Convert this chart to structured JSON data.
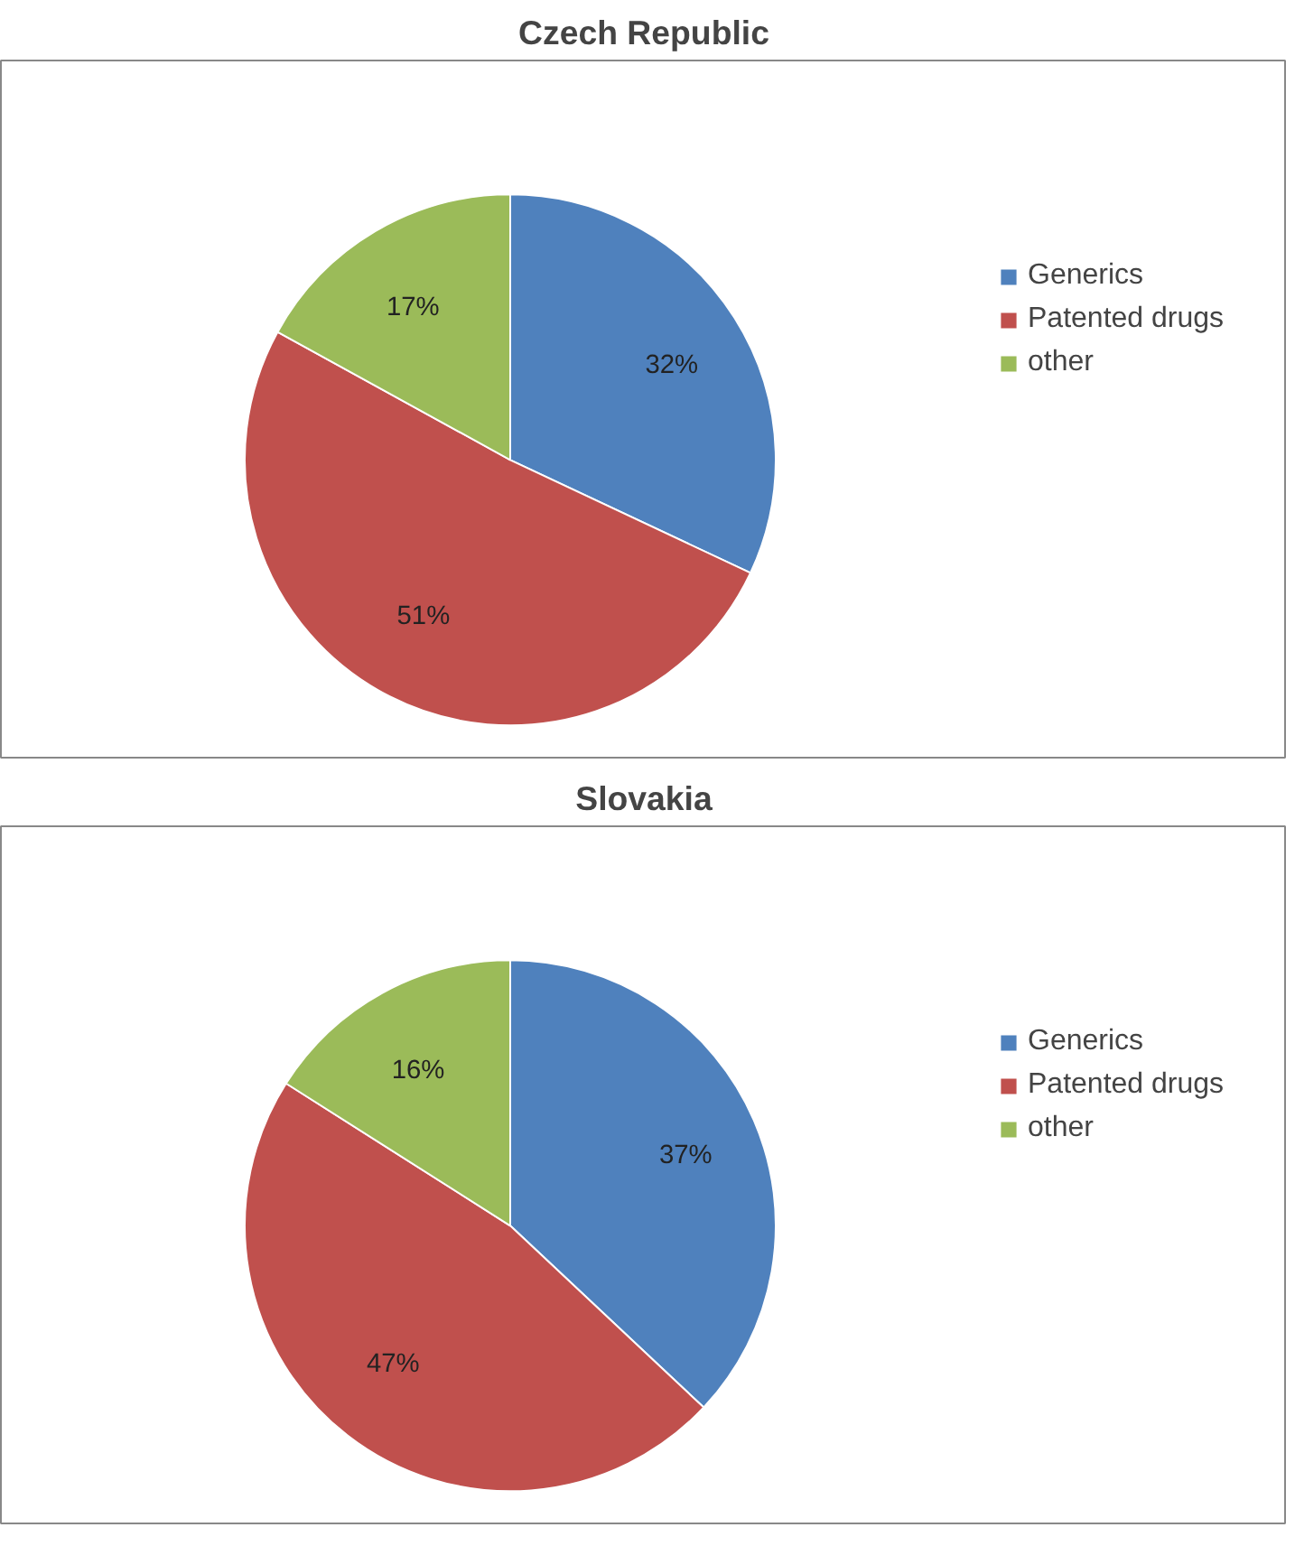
{
  "chart_data": [
    {
      "type": "pie",
      "title": "Czech Republic",
      "categories": [
        "Generics",
        "Patented drugs",
        "other"
      ],
      "values": [
        32,
        51,
        17
      ],
      "colors": [
        "#4f81bd",
        "#c0504d",
        "#9bbb59"
      ],
      "value_labels": [
        "32%",
        "51%",
        "17%"
      ],
      "legend": "right"
    },
    {
      "type": "pie",
      "title": "Slovakia",
      "categories": [
        "Generics",
        "Patented drugs",
        "other"
      ],
      "values": [
        37,
        47,
        16
      ],
      "colors": [
        "#4f81bd",
        "#c0504d",
        "#9bbb59"
      ],
      "value_labels": [
        "37%",
        "47%",
        "16%"
      ],
      "legend": "right"
    }
  ]
}
